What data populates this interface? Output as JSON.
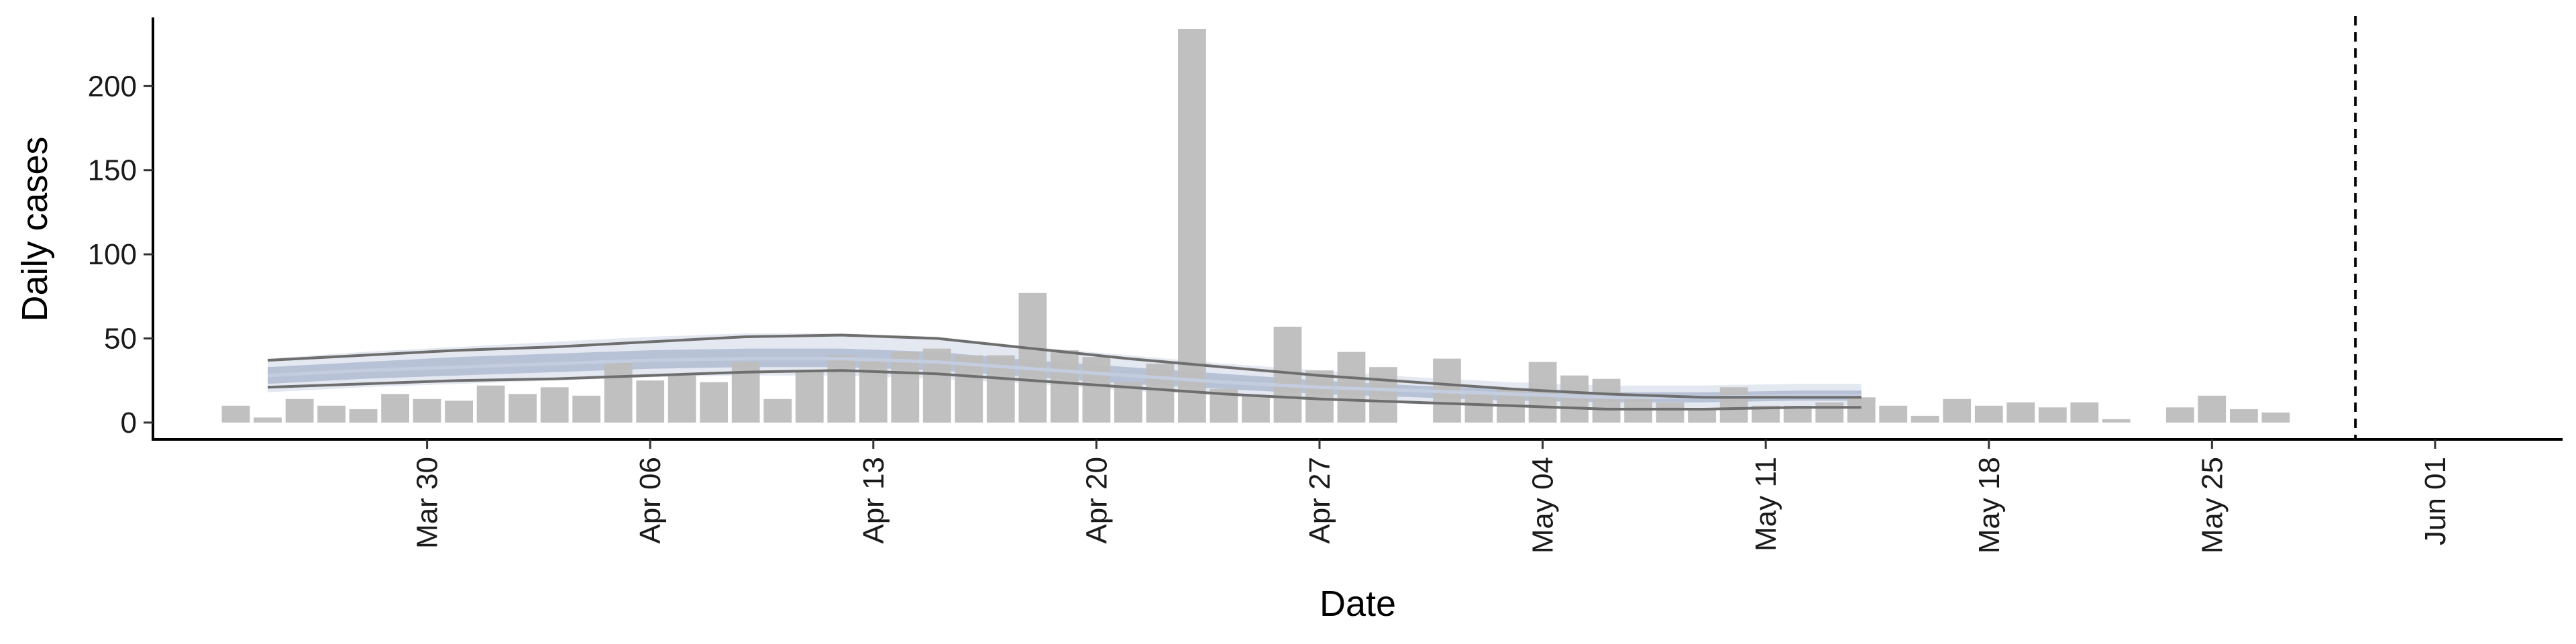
{
  "chart_data": {
    "type": "bar",
    "xlabel": "Date",
    "ylabel": "Daily cases",
    "ylim": [
      -10,
      240
    ],
    "y_ticks": [
      0,
      50,
      100,
      150,
      200
    ],
    "x_ticks": [
      {
        "label": "Mar 30",
        "day": 6
      },
      {
        "label": "Apr 06",
        "day": 13
      },
      {
        "label": "Apr 13",
        "day": 20
      },
      {
        "label": "Apr 20",
        "day": 27
      },
      {
        "label": "Apr 27",
        "day": 34
      },
      {
        "label": "May 04",
        "day": 41
      },
      {
        "label": "May 11",
        "day": 48
      },
      {
        "label": "May 18",
        "day": 55
      },
      {
        "label": "May 25",
        "day": 62
      },
      {
        "label": "Jun 01",
        "day": 69
      }
    ],
    "x_start_date": "Mar 24",
    "xlim": [
      -2.6,
      73.0
    ],
    "cases": [
      10,
      3,
      14,
      10,
      8,
      17,
      14,
      13,
      22,
      17,
      21,
      16,
      36,
      25,
      28,
      24,
      36,
      14,
      30,
      40,
      38,
      42,
      44,
      40,
      40,
      77,
      43,
      39,
      24,
      35,
      234,
      20,
      16,
      57,
      31,
      42,
      33,
      null,
      38,
      17,
      20,
      36,
      28,
      26,
      14,
      12,
      8,
      21,
      10,
      10,
      12,
      15,
      10,
      4,
      14,
      10,
      12,
      9,
      12,
      2,
      null,
      9,
      16,
      8,
      6
    ],
    "estimate_days": [
      1,
      4,
      7,
      10,
      13,
      16,
      19,
      22,
      25,
      28,
      31,
      34,
      37,
      40,
      43,
      46,
      49,
      51
    ],
    "estimate_median": [
      28,
      31,
      33,
      35,
      37,
      38,
      38,
      36,
      32,
      28,
      24,
      21,
      19,
      17,
      15,
      15,
      16,
      16
    ],
    "band_inner": {
      "lower": [
        23,
        26,
        28,
        30,
        32,
        33,
        33,
        31,
        27,
        23,
        20,
        17,
        15,
        13,
        12,
        12,
        13,
        13
      ],
      "upper": [
        33,
        36,
        39,
        41,
        43,
        44,
        44,
        42,
        37,
        33,
        29,
        25,
        22,
        20,
        18,
        18,
        19,
        19
      ]
    },
    "band_outer": {
      "lower": [
        18,
        21,
        23,
        25,
        27,
        28,
        28,
        26,
        23,
        19,
        16,
        13,
        11,
        10,
        9,
        9,
        10,
        10
      ],
      "upper": [
        38,
        42,
        45,
        48,
        51,
        53,
        53,
        51,
        45,
        40,
        35,
        31,
        27,
        24,
        22,
        22,
        23,
        23
      ]
    },
    "interval_lines": {
      "lower": [
        21,
        23,
        25,
        26,
        28,
        30,
        31,
        29,
        25,
        21,
        17,
        14,
        12,
        10,
        8,
        8,
        9,
        9
      ],
      "upper": [
        37,
        40,
        43,
        45,
        48,
        51,
        52,
        50,
        44,
        38,
        33,
        28,
        24,
        20,
        17,
        15,
        15,
        15
      ]
    },
    "vline_day": 66.5,
    "colors": {
      "bars": "#bdbdbd",
      "band_outer": "#dfe4ee",
      "band_inner": "#aab5cc",
      "median": "#c4cde0",
      "interval_lines": "#6e6e6e",
      "axis": "#000000"
    }
  }
}
